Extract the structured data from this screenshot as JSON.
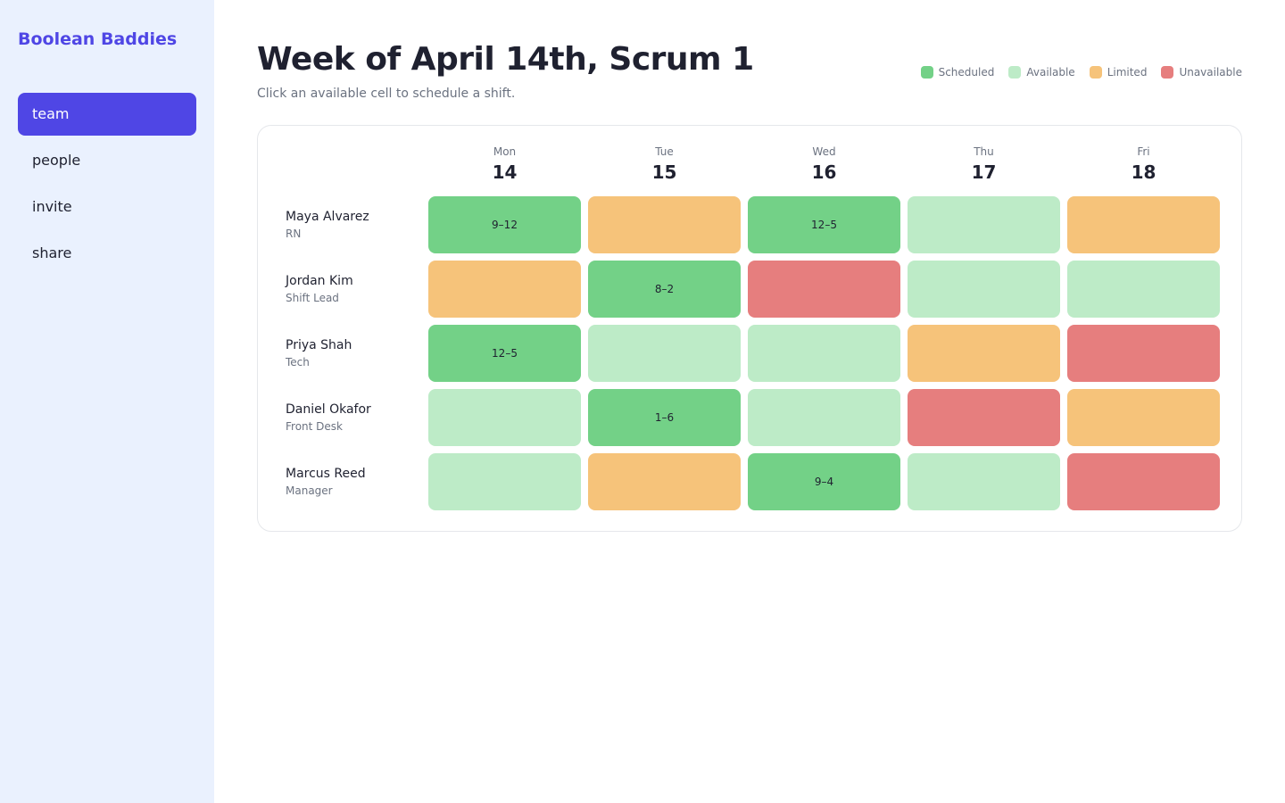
{
  "sidebar": {
    "brand": "Boolean Baddies",
    "nav": [
      {
        "label": "team",
        "active": true
      },
      {
        "label": "people",
        "active": false
      },
      {
        "label": "invite",
        "active": false
      },
      {
        "label": "share",
        "active": false
      }
    ]
  },
  "header": {
    "title": "Week of April 14th, Scrum 1",
    "subtitle": "Click an available cell to schedule a shift."
  },
  "legend": [
    {
      "name": "Scheduled",
      "color": "#73d187"
    },
    {
      "name": "Available",
      "color": "#bdebc7"
    },
    {
      "name": "Limited",
      "color": "#f6c37a"
    },
    {
      "name": "Unavailable",
      "color": "#e67e7e"
    }
  ],
  "grid": {
    "days": [
      {
        "dow": "Mon",
        "date": "14"
      },
      {
        "dow": "Tue",
        "date": "15"
      },
      {
        "dow": "Wed",
        "date": "16"
      },
      {
        "dow": "Thu",
        "date": "17"
      },
      {
        "dow": "Fri",
        "date": "18"
      }
    ],
    "rows": [
      {
        "name": "Maya Alvarez",
        "role": "RN",
        "cells": [
          {
            "status": "Scheduled",
            "label": "9–12"
          },
          {
            "status": "Limited"
          },
          {
            "status": "Scheduled",
            "label": "12–5"
          },
          {
            "status": "Available"
          },
          {
            "status": "Limited"
          }
        ]
      },
      {
        "name": "Jordan Kim",
        "role": "Shift Lead",
        "cells": [
          {
            "status": "Limited"
          },
          {
            "status": "Scheduled",
            "label": "8–2"
          },
          {
            "status": "Unavailable"
          },
          {
            "status": "Available"
          },
          {
            "status": "Available"
          }
        ]
      },
      {
        "name": "Priya Shah",
        "role": "Tech",
        "cells": [
          {
            "status": "Scheduled",
            "label": "12–5"
          },
          {
            "status": "Available"
          },
          {
            "status": "Available"
          },
          {
            "status": "Limited"
          },
          {
            "status": "Unavailable"
          }
        ]
      },
      {
        "name": "Daniel Okafor",
        "role": "Front Desk",
        "cells": [
          {
            "status": "Available"
          },
          {
            "status": "Scheduled",
            "label": "1–6"
          },
          {
            "status": "Available"
          },
          {
            "status": "Unavailable"
          },
          {
            "status": "Limited"
          }
        ]
      },
      {
        "name": "Marcus Reed",
        "role": "Manager",
        "cells": [
          {
            "status": "Available"
          },
          {
            "status": "Limited"
          },
          {
            "status": "Scheduled",
            "label": "9–4"
          },
          {
            "status": "Available"
          },
          {
            "status": "Unavailable"
          }
        ]
      }
    ]
  }
}
